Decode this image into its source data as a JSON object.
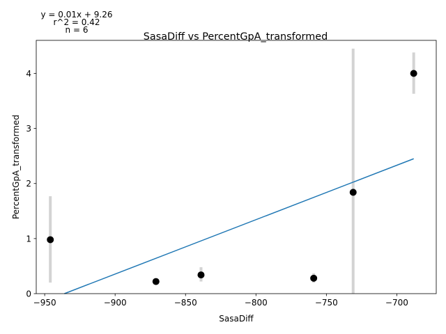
{
  "chart_data": {
    "type": "scatter",
    "title": "SasaDiff vs PercentGpA_transformed",
    "xlabel": "SasaDiff",
    "ylabel": "PercentGpA_transformed",
    "xlim": [
      -956,
      -672
    ],
    "ylim": [
      0,
      4.6
    ],
    "x_ticks": [
      -950,
      -900,
      -850,
      -800,
      -750,
      -700
    ],
    "y_ticks": [
      0,
      1,
      2,
      3,
      4
    ],
    "x_tick_labels": [
      "−950",
      "−900",
      "−850",
      "−800",
      "−750",
      "−700"
    ],
    "y_tick_labels": [
      "0",
      "1",
      "2",
      "3",
      "4"
    ],
    "grid": false,
    "points": [
      {
        "x": -946,
        "y": 0.98,
        "err_low": 0.2,
        "err_high": 1.77
      },
      {
        "x": -871,
        "y": 0.22,
        "err_low": 0.18,
        "err_high": 0.26
      },
      {
        "x": -839,
        "y": 0.34,
        "err_low": 0.22,
        "err_high": 0.48
      },
      {
        "x": -759,
        "y": 0.28,
        "err_low": 0.2,
        "err_high": 0.37
      },
      {
        "x": -731,
        "y": 1.84,
        "err_low": 0.0,
        "err_high": 4.45
      },
      {
        "x": -688,
        "y": 4.0,
        "err_low": 3.63,
        "err_high": 4.38
      }
    ],
    "fit_line": {
      "slope": 0.01,
      "intercept": 9.26,
      "x_start": -936,
      "x_end": -688,
      "y_start": -0.01,
      "y_end": 2.45
    },
    "annotation": [
      "y = 0.01x + 9.26",
      "r^2 = 0.42",
      "n = 6"
    ],
    "colors": {
      "point": "#000000",
      "errorbar": "#d3d3d3",
      "fit": "#1f77b4",
      "axes": "#000000"
    }
  }
}
